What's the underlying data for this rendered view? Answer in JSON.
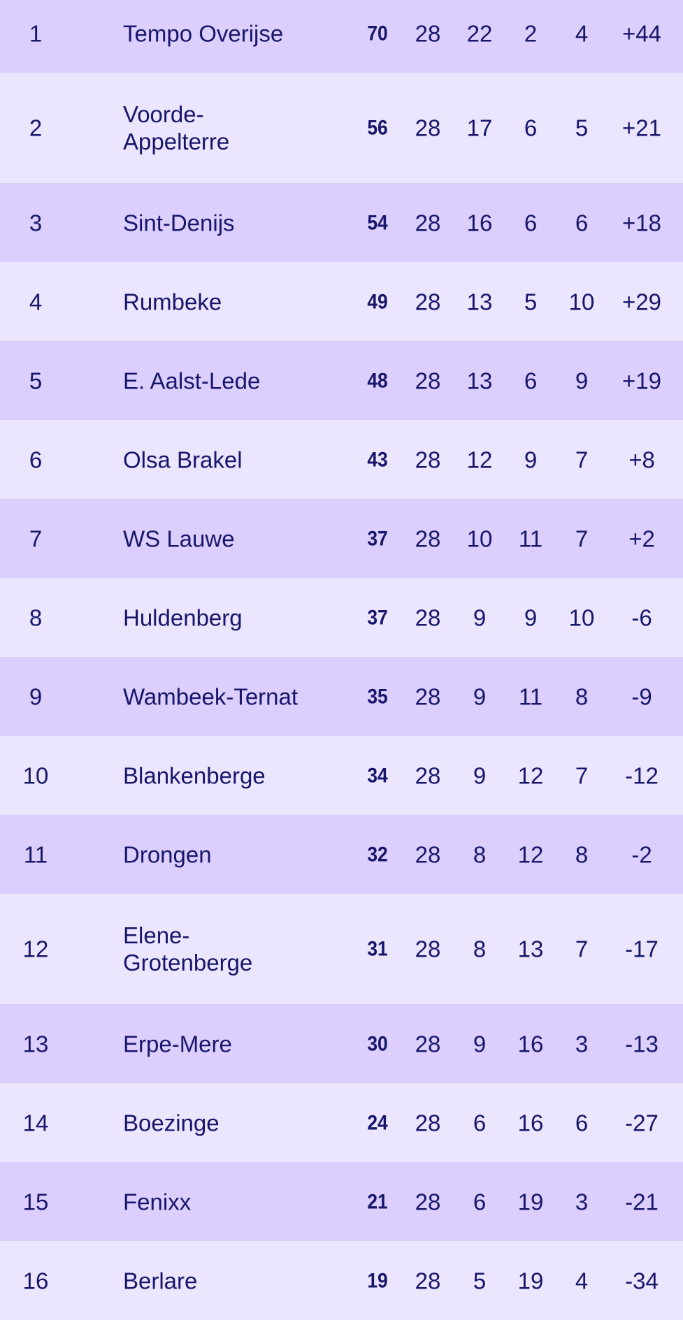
{
  "standings": [
    {
      "rank": "1",
      "team": "Tempo Overijse",
      "points": "70",
      "played": "28",
      "won": "22",
      "drawn": "2",
      "lost": "4",
      "goal_diff": "+44"
    },
    {
      "rank": "2",
      "team": "Voorde-\nAppelterre",
      "points": "56",
      "played": "28",
      "won": "17",
      "drawn": "6",
      "lost": "5",
      "goal_diff": "+21"
    },
    {
      "rank": "3",
      "team": "Sint-Denijs",
      "points": "54",
      "played": "28",
      "won": "16",
      "drawn": "6",
      "lost": "6",
      "goal_diff": "+18"
    },
    {
      "rank": "4",
      "team": "Rumbeke",
      "points": "49",
      "played": "28",
      "won": "13",
      "drawn": "5",
      "lost": "10",
      "goal_diff": "+29"
    },
    {
      "rank": "5",
      "team": "E. Aalst-Lede",
      "points": "48",
      "played": "28",
      "won": "13",
      "drawn": "6",
      "lost": "9",
      "goal_diff": "+19"
    },
    {
      "rank": "6",
      "team": "Olsa Brakel",
      "points": "43",
      "played": "28",
      "won": "12",
      "drawn": "9",
      "lost": "7",
      "goal_diff": "+8"
    },
    {
      "rank": "7",
      "team": "WS Lauwe",
      "points": "37",
      "played": "28",
      "won": "10",
      "drawn": "11",
      "lost": "7",
      "goal_diff": "+2"
    },
    {
      "rank": "8",
      "team": "Huldenberg",
      "points": "37",
      "played": "28",
      "won": "9",
      "drawn": "9",
      "lost": "10",
      "goal_diff": "-6"
    },
    {
      "rank": "9",
      "team": "Wambeek-Ternat",
      "points": "35",
      "played": "28",
      "won": "9",
      "drawn": "11",
      "lost": "8",
      "goal_diff": "-9"
    },
    {
      "rank": "10",
      "team": "Blankenberge",
      "points": "34",
      "played": "28",
      "won": "9",
      "drawn": "12",
      "lost": "7",
      "goal_diff": "-12"
    },
    {
      "rank": "11",
      "team": "Drongen",
      "points": "32",
      "played": "28",
      "won": "8",
      "drawn": "12",
      "lost": "8",
      "goal_diff": "-2"
    },
    {
      "rank": "12",
      "team": "Elene-\nGrotenberge",
      "points": "31",
      "played": "28",
      "won": "8",
      "drawn": "13",
      "lost": "7",
      "goal_diff": "-17"
    },
    {
      "rank": "13",
      "team": "Erpe-Mere",
      "points": "30",
      "played": "28",
      "won": "9",
      "drawn": "16",
      "lost": "3",
      "goal_diff": "-13"
    },
    {
      "rank": "14",
      "team": "Boezinge",
      "points": "24",
      "played": "28",
      "won": "6",
      "drawn": "16",
      "lost": "6",
      "goal_diff": "-27"
    },
    {
      "rank": "15",
      "team": "Fenixx",
      "points": "21",
      "played": "28",
      "won": "6",
      "drawn": "19",
      "lost": "3",
      "goal_diff": "-21"
    },
    {
      "rank": "16",
      "team": "Berlare",
      "points": "19",
      "played": "28",
      "won": "5",
      "drawn": "19",
      "lost": "4",
      "goal_diff": "-34"
    }
  ],
  "colors": {
    "row_dark": "#dccffd",
    "row_light": "#ece5fe",
    "text": "#17166b"
  }
}
